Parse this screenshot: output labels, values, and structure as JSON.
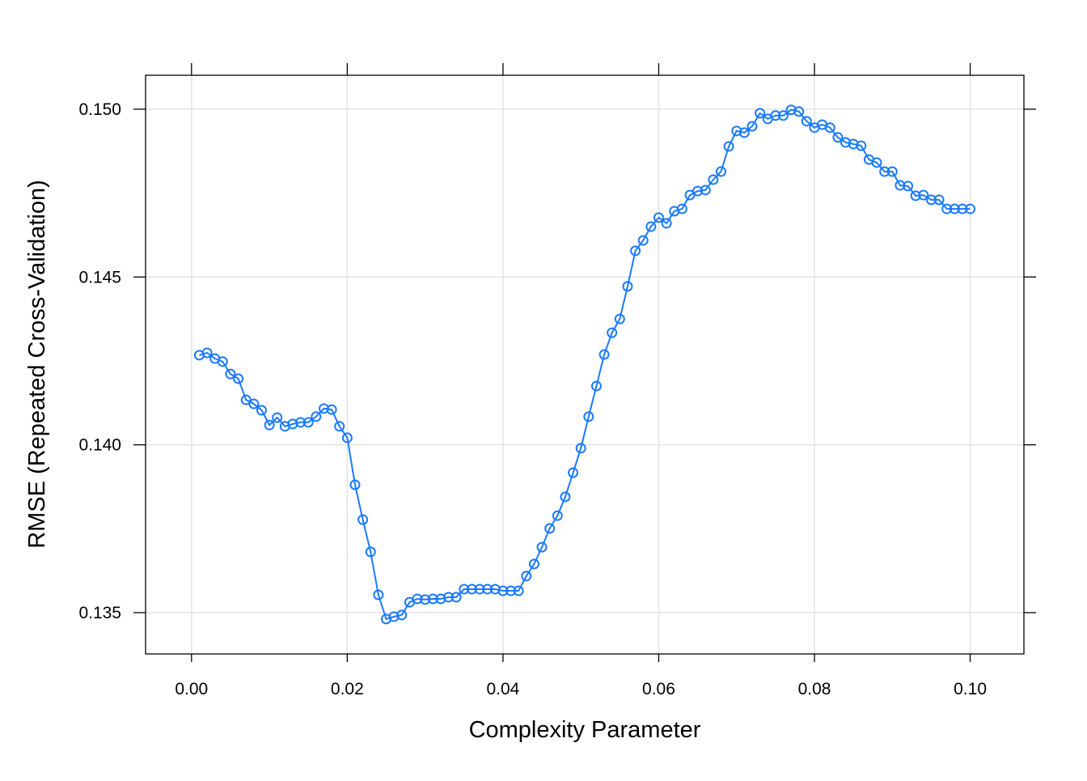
{
  "chart_data": {
    "type": "line",
    "title": "",
    "xlabel": "Complexity Parameter",
    "ylabel": "RMSE (Repeated Cross-Validation)",
    "xlim": [
      -0.0059,
      0.1069
    ],
    "ylim": [
      0.13377,
      0.15101
    ],
    "xticks": [
      0.0,
      0.02,
      0.04,
      0.06,
      0.08,
      0.1
    ],
    "xtick_labels": [
      "0.00",
      "0.02",
      "0.04",
      "0.06",
      "0.08",
      "0.10"
    ],
    "yticks": [
      0.135,
      0.14,
      0.145,
      0.15
    ],
    "ytick_labels": [
      "0.135",
      "0.140",
      "0.145",
      "0.150"
    ],
    "grid": true,
    "marker": "open-circle",
    "color": "#1a7aff",
    "x": [
      0.001,
      0.002,
      0.003,
      0.004,
      0.005,
      0.006,
      0.007,
      0.008,
      0.009,
      0.01,
      0.011,
      0.012,
      0.013,
      0.014,
      0.015,
      0.016,
      0.017,
      0.018,
      0.019,
      0.02,
      0.021,
      0.022,
      0.023,
      0.024,
      0.025,
      0.026,
      0.027,
      0.028,
      0.029,
      0.03,
      0.031,
      0.032,
      0.033,
      0.034,
      0.035,
      0.036,
      0.037,
      0.038,
      0.039,
      0.04,
      0.041,
      0.042,
      0.043,
      0.044,
      0.045,
      0.046,
      0.047,
      0.048,
      0.049,
      0.05,
      0.051,
      0.052,
      0.053,
      0.054,
      0.055,
      0.056,
      0.057,
      0.058,
      0.059,
      0.06,
      0.061,
      0.062,
      0.063,
      0.064,
      0.065,
      0.066,
      0.067,
      0.068,
      0.069,
      0.07,
      0.071,
      0.072,
      0.073,
      0.074,
      0.075,
      0.076,
      0.077,
      0.078,
      0.079,
      0.08,
      0.081,
      0.082,
      0.083,
      0.084,
      0.085,
      0.086,
      0.087,
      0.088,
      0.089,
      0.09,
      0.091,
      0.092,
      0.093,
      0.094,
      0.095,
      0.096,
      0.097,
      0.098,
      0.099,
      0.1
    ],
    "y": [
      0.14267,
      0.14274,
      0.14257,
      0.14248,
      0.14211,
      0.14197,
      0.14134,
      0.14122,
      0.14103,
      0.14059,
      0.14081,
      0.14055,
      0.14062,
      0.14067,
      0.14067,
      0.14084,
      0.14108,
      0.14105,
      0.14055,
      0.14021,
      0.13881,
      0.13777,
      0.13681,
      0.13553,
      0.13481,
      0.13488,
      0.13493,
      0.13531,
      0.13541,
      0.13539,
      0.13541,
      0.13541,
      0.13546,
      0.13546,
      0.1357,
      0.1357,
      0.1357,
      0.1357,
      0.1357,
      0.13565,
      0.13565,
      0.13565,
      0.13609,
      0.13645,
      0.13695,
      0.13751,
      0.13789,
      0.13845,
      0.13917,
      0.1399,
      0.14084,
      0.14175,
      0.14269,
      0.14334,
      0.14375,
      0.14472,
      0.14578,
      0.14609,
      0.1465,
      0.14677,
      0.1466,
      0.14696,
      0.14703,
      0.14744,
      0.14756,
      0.14759,
      0.1479,
      0.14814,
      0.14889,
      0.14935,
      0.1493,
      0.14949,
      0.14988,
      0.14971,
      0.14981,
      0.14981,
      0.14998,
      0.14993,
      0.14964,
      0.14945,
      0.14954,
      0.14945,
      0.14916,
      0.14901,
      0.14896,
      0.14891,
      0.1485,
      0.14841,
      0.14814,
      0.14814,
      0.14773,
      0.14771,
      0.14742,
      0.14744,
      0.1473,
      0.1473,
      0.14703,
      0.14703,
      0.14703,
      0.14703
    ]
  }
}
